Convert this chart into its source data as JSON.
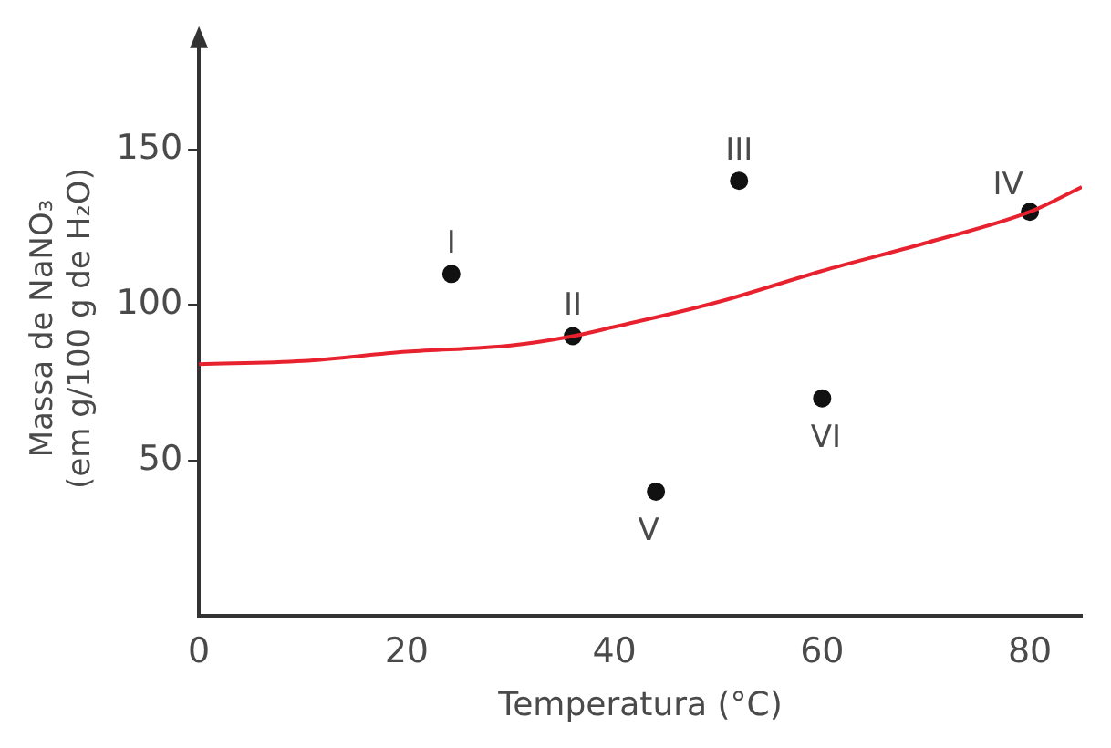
{
  "chart_data": {
    "type": "scatter",
    "xlabel": "Temperatura (°C)",
    "ylabel": "Massa de NaNO₃\n(em g/100 g de H₂O)",
    "xlim": [
      0,
      85
    ],
    "ylim": [
      0,
      185
    ],
    "xticks": [
      0,
      20,
      40,
      60,
      80
    ],
    "yticks": [
      50,
      100,
      150
    ],
    "grid": false,
    "legend": false,
    "marker": "circle",
    "series": [
      {
        "type": "line",
        "color": "#e8212e",
        "marker": "none",
        "x": [
          0,
          10,
          20,
          30,
          36,
          40,
          50,
          60,
          70,
          80,
          85
        ],
        "values": [
          81,
          82,
          85,
          87,
          90,
          93,
          101,
          111,
          120,
          130,
          138
        ]
      },
      {
        "color": "#111111",
        "x": [
          24.3,
          36,
          52,
          80,
          44,
          60
        ],
        "values": [
          110,
          90,
          140,
          130,
          40,
          70
        ]
      }
    ],
    "annotations": [
      {
        "text": "I",
        "x": 24.3,
        "y": 110
      },
      {
        "text": "II",
        "x": 36,
        "y": 90
      },
      {
        "text": "III",
        "x": 52,
        "y": 140
      },
      {
        "text": "IV",
        "x": 80,
        "y": 130
      },
      {
        "text": "V",
        "x": 44,
        "y": 40
      },
      {
        "text": "VI",
        "x": 60,
        "y": 70
      }
    ]
  }
}
